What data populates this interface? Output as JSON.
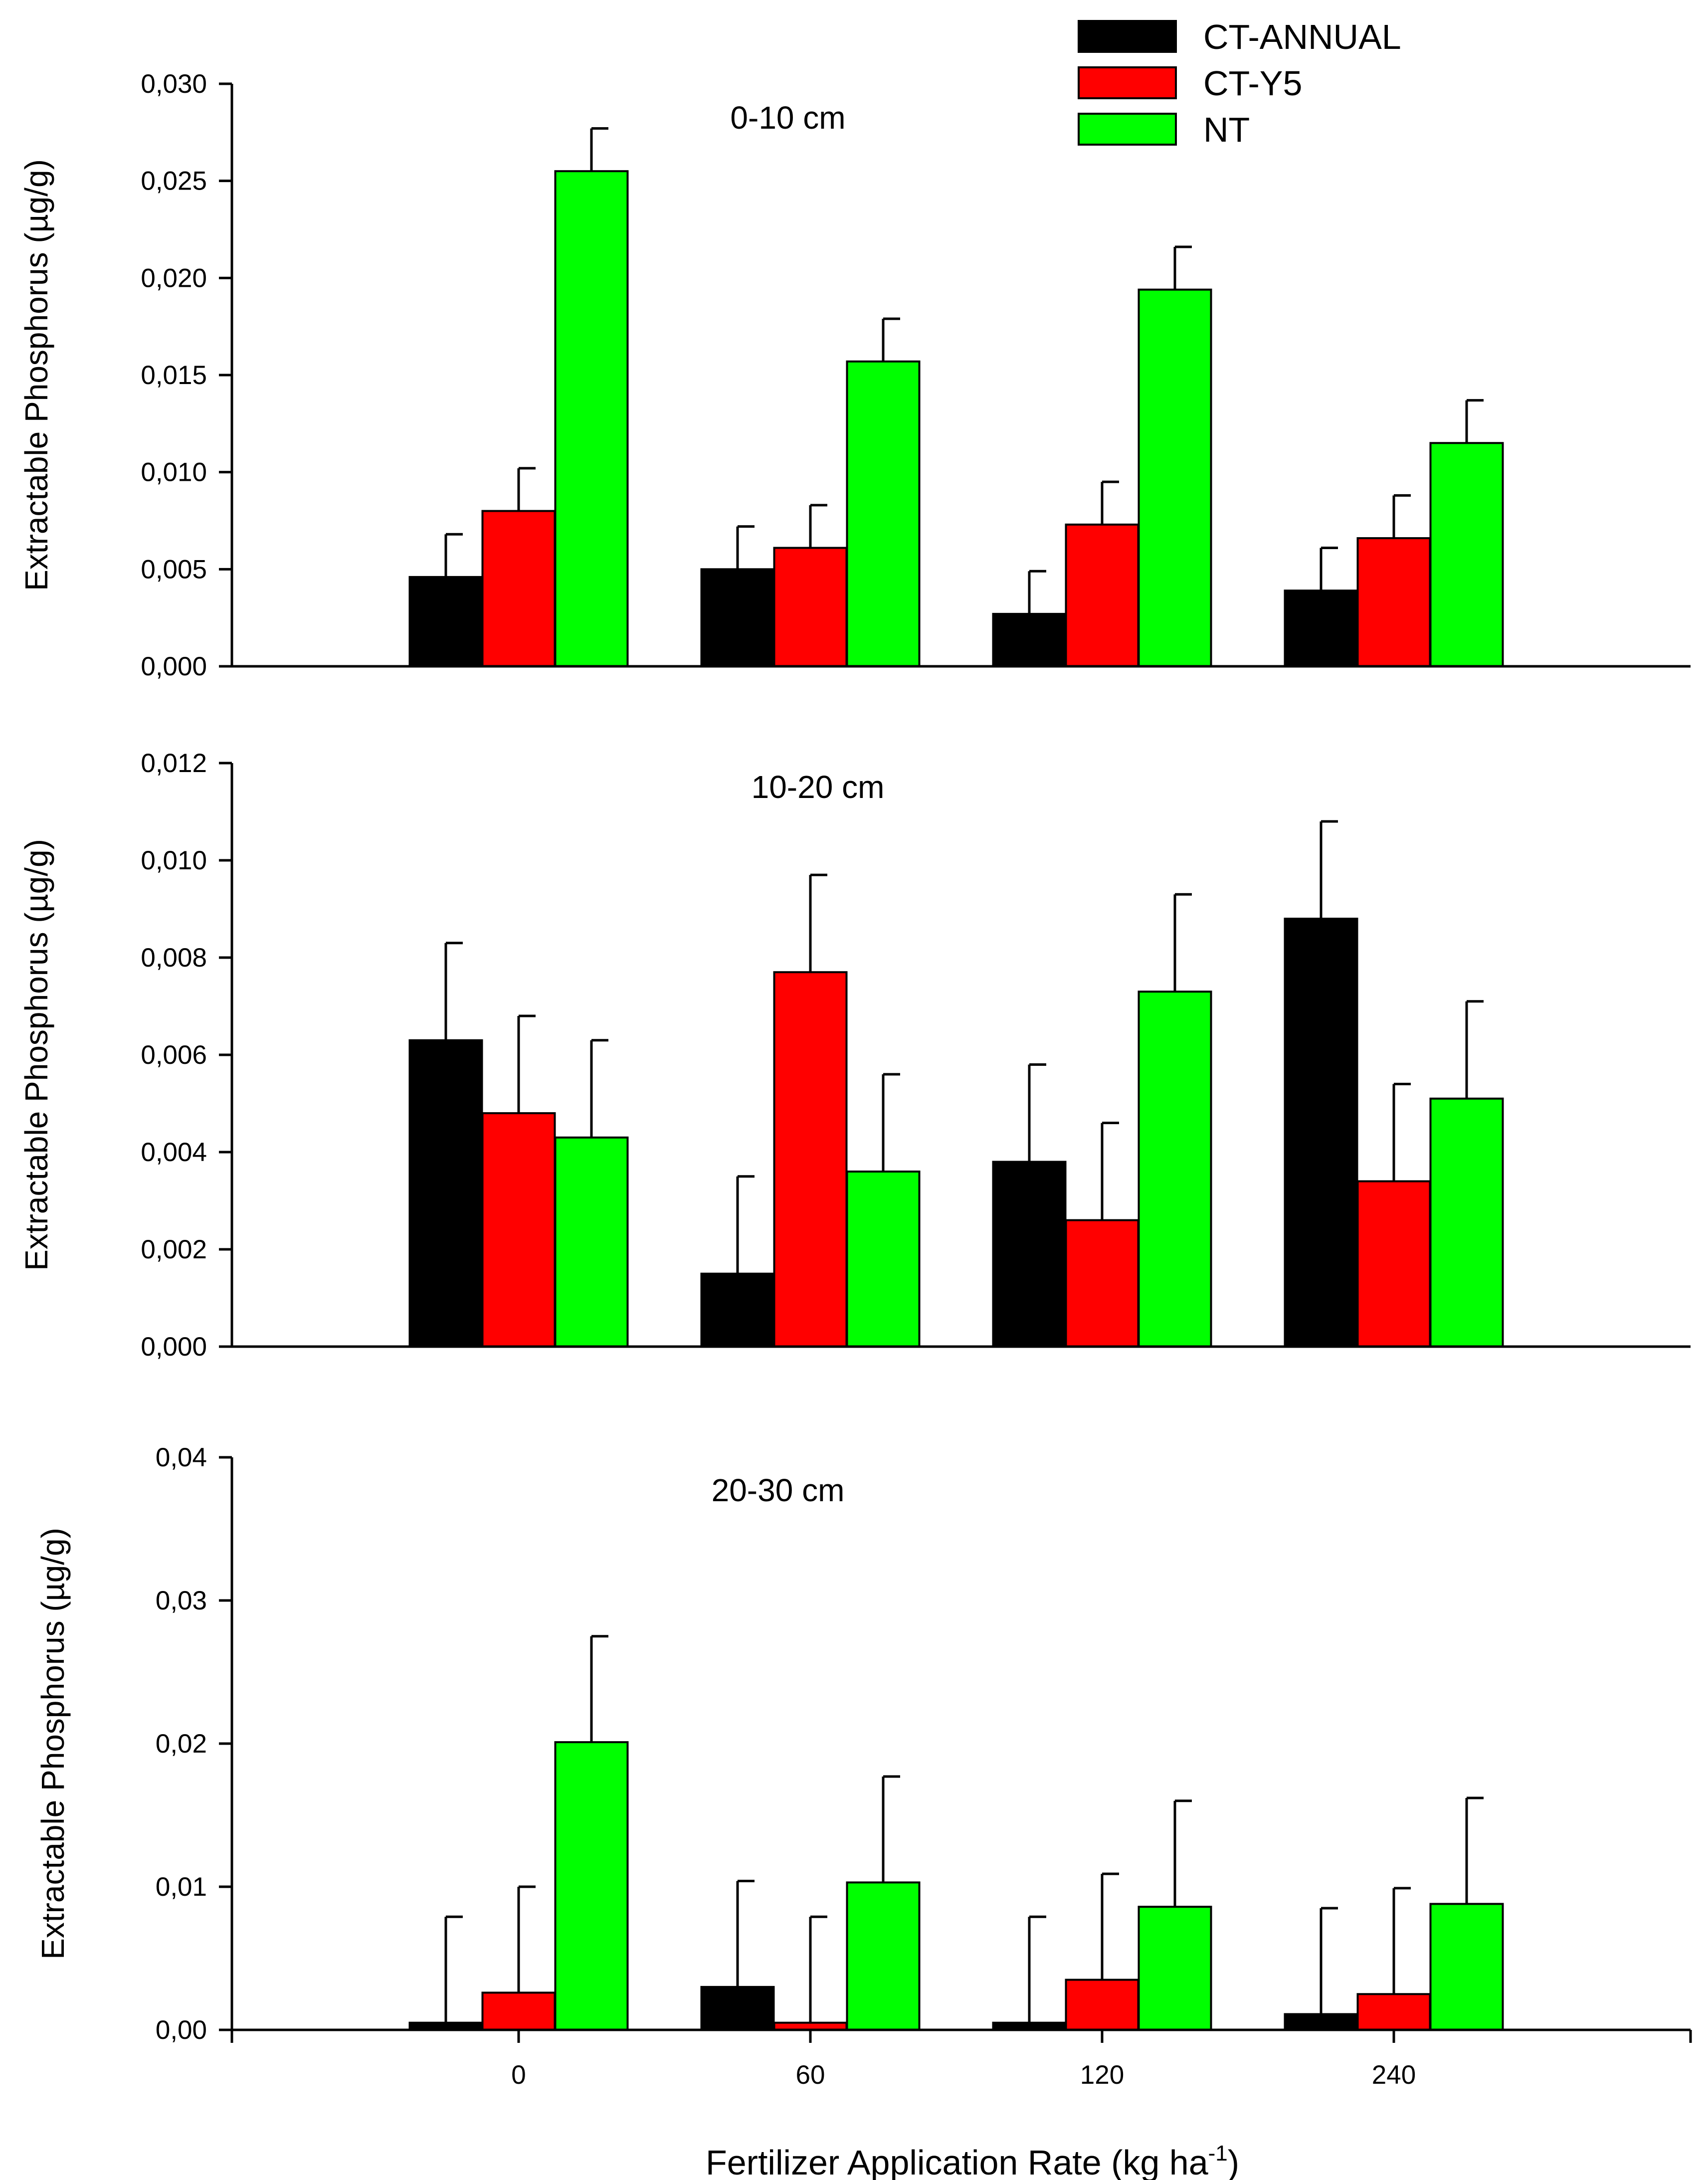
{
  "chart_data": [
    {
      "type": "bar",
      "title": "0-10 cm",
      "ylabel": "Extractable Phosphorus (µg/g)",
      "xlabel": "",
      "categories": [
        "0",
        "60",
        "120",
        "240"
      ],
      "ylim": [
        0,
        0.03
      ],
      "yticks": [
        0,
        0.005,
        0.01,
        0.015,
        0.02,
        0.025,
        0.03
      ],
      "ytick_labels": [
        "0,000",
        "0,005",
        "0,010",
        "0,015",
        "0,020",
        "0,025",
        "0,030"
      ],
      "show_xtick_labels": false,
      "series": [
        {
          "name": "CT-ANNUAL",
          "color": "#000000",
          "values": [
            0.0046,
            0.005,
            0.0027,
            0.0039
          ],
          "errors": [
            0.0022,
            0.0022,
            0.0022,
            0.0022
          ]
        },
        {
          "name": "CT-Y5",
          "color": "#ff0000",
          "values": [
            0.008,
            0.0061,
            0.0073,
            0.0066
          ],
          "errors": [
            0.0022,
            0.0022,
            0.0022,
            0.0022
          ]
        },
        {
          "name": "NT",
          "color": "#00ff00",
          "values": [
            0.0255,
            0.0157,
            0.0194,
            0.0115
          ],
          "errors": [
            0.0022,
            0.0022,
            0.0022,
            0.0022
          ]
        }
      ]
    },
    {
      "type": "bar",
      "title": "10-20 cm",
      "ylabel": "Extractable Phosphorus (µg/g)",
      "xlabel": "",
      "categories": [
        "0",
        "60",
        "120",
        "240"
      ],
      "ylim": [
        0,
        0.012
      ],
      "yticks": [
        0,
        0.002,
        0.004,
        0.006,
        0.008,
        0.01,
        0.012
      ],
      "ytick_labels": [
        "0,000",
        "0,002",
        "0,004",
        "0,006",
        "0,008",
        "0,010",
        "0,012"
      ],
      "show_xtick_labels": false,
      "series": [
        {
          "name": "CT-ANNUAL",
          "color": "#000000",
          "values": [
            0.0063,
            0.0015,
            0.0038,
            0.0088
          ],
          "errors": [
            0.002,
            0.002,
            0.002,
            0.002
          ]
        },
        {
          "name": "CT-Y5",
          "color": "#ff0000",
          "values": [
            0.0048,
            0.0077,
            0.0026,
            0.0034
          ],
          "errors": [
            0.002,
            0.002,
            0.002,
            0.002
          ]
        },
        {
          "name": "NT",
          "color": "#00ff00",
          "values": [
            0.0043,
            0.0036,
            0.0073,
            0.0051
          ],
          "errors": [
            0.002,
            0.002,
            0.002,
            0.002
          ]
        }
      ]
    },
    {
      "type": "bar",
      "title": "20-30 cm",
      "ylabel": "Extractable Phosphorus (µg/g)",
      "xlabel": "Fertilizer Application Rate (kg ha",
      "xlabel_sup": "-1",
      "xlabel_tail": ")",
      "categories": [
        "0",
        "60",
        "120",
        "240"
      ],
      "ylim": [
        0,
        0.04
      ],
      "yticks": [
        0,
        0.01,
        0.02,
        0.03,
        0.04
      ],
      "ytick_labels": [
        "0,00",
        "0,01",
        "0,02",
        "0,03",
        "0,04"
      ],
      "show_xtick_labels": true,
      "series": [
        {
          "name": "CT-ANNUAL",
          "color": "#000000",
          "values": [
            0.0005,
            0.003,
            0.0005,
            0.0011
          ],
          "errors": [
            0.0074,
            0.0074,
            0.0074,
            0.0074
          ]
        },
        {
          "name": "CT-Y5",
          "color": "#ff0000",
          "values": [
            0.0026,
            0.0005,
            0.0035,
            0.0025
          ],
          "errors": [
            0.0074,
            0.0074,
            0.0074,
            0.0074
          ]
        },
        {
          "name": "NT",
          "color": "#00ff00",
          "values": [
            0.0201,
            0.0103,
            0.0086,
            0.0088
          ],
          "errors": [
            0.0074,
            0.0074,
            0.0074,
            0.0074
          ]
        }
      ]
    }
  ],
  "legend": {
    "position": "top-right",
    "entries": [
      {
        "label": "CT-ANNUAL",
        "color": "#000000"
      },
      {
        "label": "CT-Y5",
        "color": "#ff0000"
      },
      {
        "label": "NT",
        "color": "#00ff00"
      }
    ]
  }
}
